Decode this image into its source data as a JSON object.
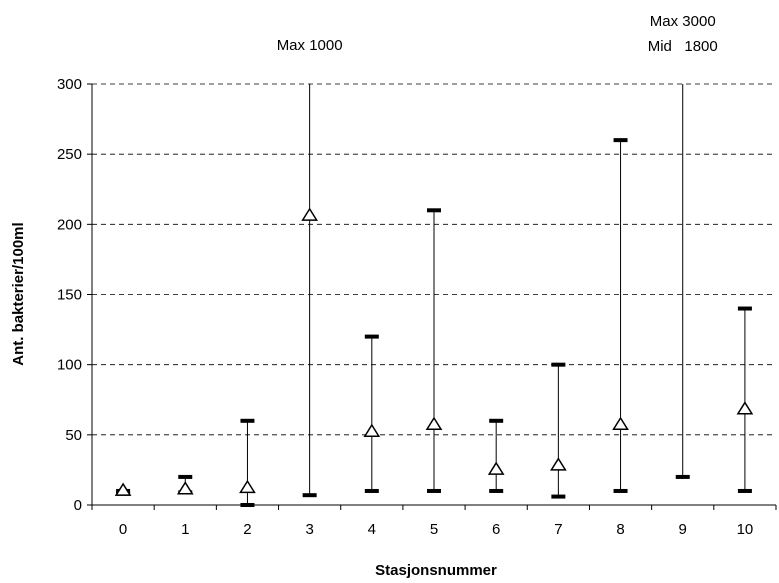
{
  "chart_data": {
    "type": "range",
    "xlabel": "Stasjonsnummer",
    "ylabel": "Ant. bakterier/100ml",
    "ylim": [
      0,
      300
    ],
    "yticks": [
      0,
      50,
      100,
      150,
      200,
      250,
      300
    ],
    "categories": [
      "0",
      "1",
      "2",
      "3",
      "4",
      "5",
      "6",
      "7",
      "8",
      "9",
      "10"
    ],
    "min": [
      8,
      9,
      0,
      7,
      10,
      10,
      10,
      6,
      10,
      20,
      10
    ],
    "max": [
      10,
      20,
      60,
      1000,
      120,
      210,
      60,
      100,
      260,
      3000,
      140
    ],
    "mid": [
      10,
      11,
      12,
      206,
      52,
      57,
      25,
      28,
      57,
      1800,
      68
    ],
    "grid": "horizontal dashed",
    "annotations": [
      {
        "station": "3",
        "lines": [
          "Max 1000"
        ]
      },
      {
        "station": "9",
        "lines": [
          "Max 3000",
          "Mid   1800"
        ]
      }
    ]
  }
}
